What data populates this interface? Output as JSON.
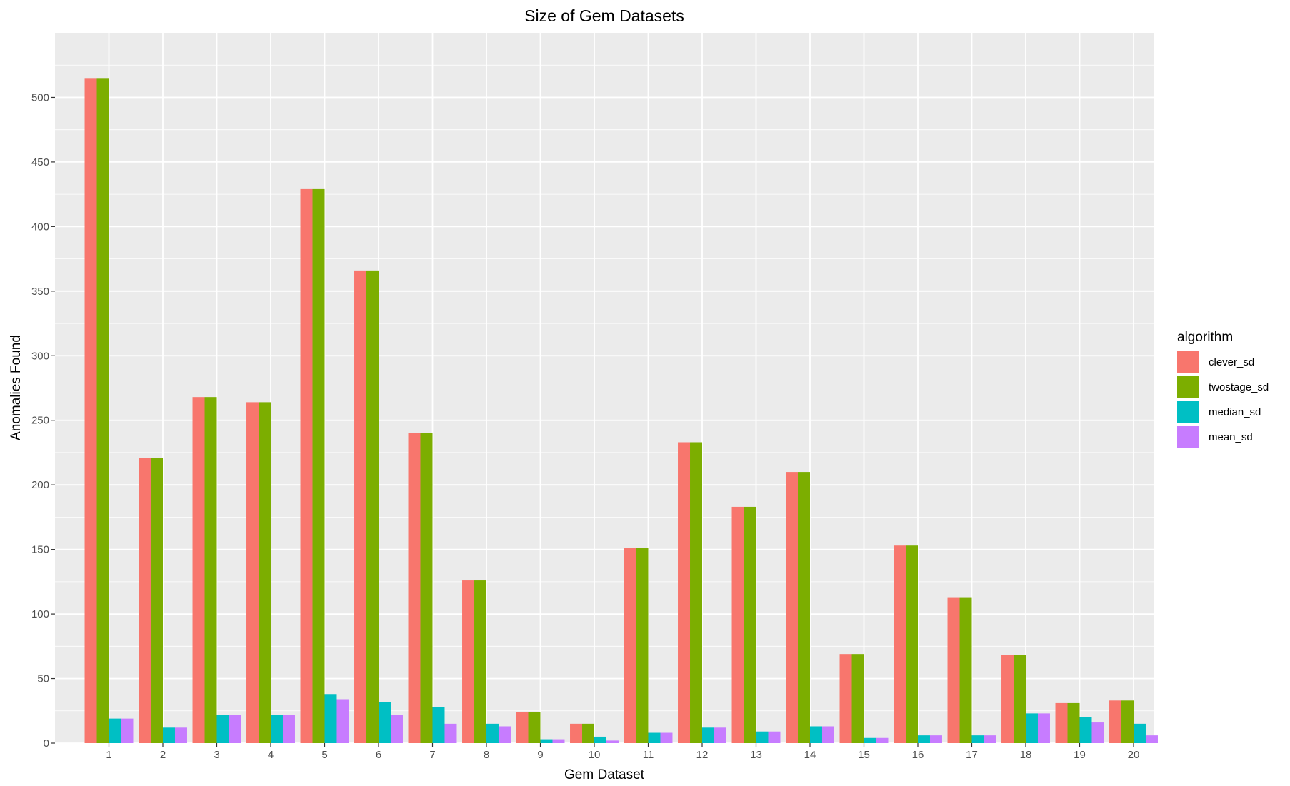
{
  "chart_data": {
    "type": "bar",
    "title": "Size of Gem Datasets",
    "xlabel": "Gem Dataset",
    "ylabel": "Anomalies Found",
    "categories": [
      "1",
      "2",
      "3",
      "4",
      "5",
      "6",
      "7",
      "8",
      "9",
      "10",
      "11",
      "12",
      "13",
      "14",
      "15",
      "16",
      "17",
      "18",
      "19",
      "20"
    ],
    "ylim": [
      0,
      550
    ],
    "yticks": [
      0,
      50,
      100,
      150,
      200,
      250,
      300,
      350,
      400,
      450,
      500
    ],
    "grid": true,
    "legend": {
      "title": "algorithm",
      "placement": "right"
    },
    "series": [
      {
        "name": "clever_sd",
        "color": "#F8766D",
        "values": [
          515,
          221,
          268,
          264,
          429,
          366,
          240,
          126,
          24,
          15,
          151,
          233,
          183,
          210,
          69,
          153,
          113,
          68,
          31,
          33
        ]
      },
      {
        "name": "twostage_sd",
        "color": "#7CAE00",
        "values": [
          515,
          221,
          268,
          264,
          429,
          366,
          240,
          126,
          24,
          15,
          151,
          233,
          183,
          210,
          69,
          153,
          113,
          68,
          31,
          33
        ]
      },
      {
        "name": "median_sd",
        "color": "#00BFC4",
        "values": [
          19,
          12,
          22,
          22,
          38,
          32,
          28,
          15,
          3,
          5,
          8,
          12,
          9,
          13,
          4,
          6,
          6,
          23,
          20,
          15
        ]
      },
      {
        "name": "mean_sd",
        "color": "#C77CFF",
        "values": [
          19,
          12,
          22,
          22,
          34,
          22,
          15,
          13,
          3,
          2,
          8,
          12,
          9,
          13,
          4,
          6,
          6,
          23,
          16,
          6
        ]
      }
    ]
  },
  "colors": {
    "panel_background": "#EBEBEB",
    "grid_major": "#FFFFFF",
    "tick_text": "#4D4D4D"
  }
}
